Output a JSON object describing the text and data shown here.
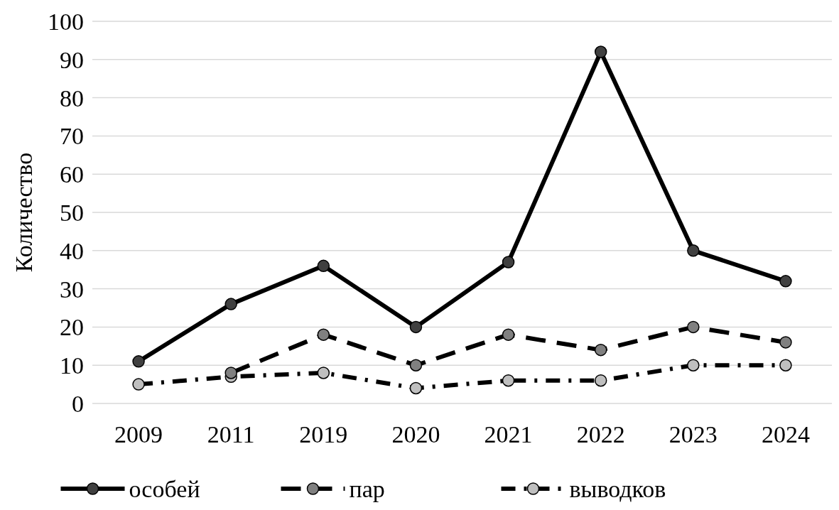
{
  "chart_data": {
    "type": "line",
    "ylabel": "Количество",
    "categories": [
      "2009",
      "2011",
      "2019",
      "2020",
      "2021",
      "2022",
      "2023",
      "2024"
    ],
    "series": [
      {
        "name": "особей",
        "color": "#404040",
        "line_style": "solid",
        "values": [
          11,
          26,
          36,
          20,
          37,
          92,
          40,
          32
        ]
      },
      {
        "name": "пар",
        "color": "#808080",
        "line_style": "dashed",
        "values": [
          null,
          8,
          18,
          10,
          18,
          14,
          20,
          16
        ]
      },
      {
        "name": "выводков",
        "color": "#bfbfbf",
        "line_style": "dotted",
        "values": [
          5,
          7,
          8,
          4,
          6,
          6,
          10,
          10
        ]
      }
    ],
    "ylim": [
      0,
      100
    ],
    "yticks": [
      0,
      10,
      20,
      30,
      40,
      50,
      60,
      70,
      80,
      90,
      100
    ],
    "grid": "y",
    "legend": "bottom",
    "marker": "circle"
  }
}
